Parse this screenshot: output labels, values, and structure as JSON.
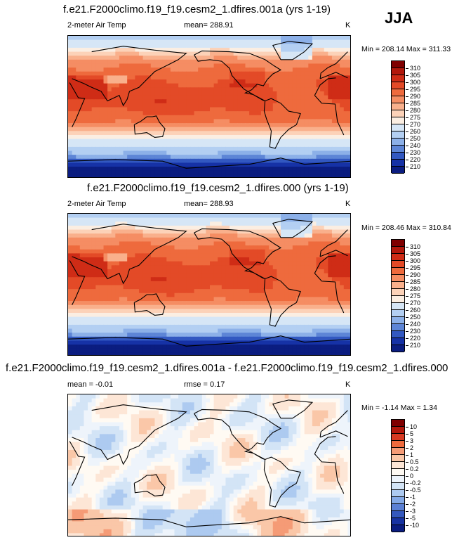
{
  "season": "JJA",
  "panels": [
    {
      "title": "f.e21.F2000climo.f19_f19.cesm2_1.dfires.001a (yrs 1-19)",
      "variable": "2-meter Air Temp",
      "mean_text": "mean= 288.91",
      "units": "K",
      "minmax_text": "Min = 208.14 Max = 311.33",
      "colorbar": {
        "labels": [
          "310",
          "305",
          "300",
          "295",
          "290",
          "285",
          "280",
          "275",
          "270",
          "260",
          "250",
          "240",
          "230",
          "220",
          "210"
        ],
        "colors": [
          "#7f0000",
          "#b2180c",
          "#cf2c16",
          "#e34a27",
          "#ee6a3d",
          "#f58d63",
          "#f9b08c",
          "#fcd2b8",
          "#fbeee2",
          "#d6e6f6",
          "#b3cff2",
          "#8cb0e8",
          "#5d85d6",
          "#3258c1",
          "#1632a6",
          "#0b1d80"
        ]
      },
      "field": "abs"
    },
    {
      "title": "f.e21.F2000climo.f19_f19.cesm2_1.dfires.000 (yrs 1-19)",
      "variable": "2-meter Air Temp",
      "mean_text": "mean= 288.93",
      "units": "K",
      "minmax_text": "Min = 208.46 Max = 310.84",
      "colorbar": {
        "labels": [
          "310",
          "305",
          "300",
          "295",
          "290",
          "285",
          "280",
          "275",
          "270",
          "260",
          "250",
          "240",
          "230",
          "220",
          "210"
        ],
        "colors": [
          "#7f0000",
          "#b2180c",
          "#cf2c16",
          "#e34a27",
          "#ee6a3d",
          "#f58d63",
          "#f9b08c",
          "#fcd2b8",
          "#fbeee2",
          "#d6e6f6",
          "#b3cff2",
          "#8cb0e8",
          "#5d85d6",
          "#3258c1",
          "#1632a6",
          "#0b1d80"
        ]
      },
      "field": "abs"
    },
    {
      "title": "f.e21.F2000climo.f19_f19.cesm2_1.dfires.001a - f.e21.F2000climo.f19_f19.cesm2_1.dfires.000",
      "variable": "mean =  -0.01",
      "mean_text": "rmse =  0.17",
      "units": "K",
      "minmax_text": "Min =  -1.14 Max =   1.34",
      "colorbar": {
        "labels": [
          "10",
          "5",
          "3",
          "2",
          "1",
          "0.5",
          "0.2",
          "0",
          "-0.2",
          "-0.5",
          "-1",
          "-2",
          "-3",
          "-5",
          "-10"
        ],
        "colors": [
          "#7f0000",
          "#b2180c",
          "#d73a22",
          "#ee6a3d",
          "#f59b76",
          "#fac7a8",
          "#fde6d6",
          "#fffaf3",
          "#eef4fb",
          "#d3e4f6",
          "#adcaf0",
          "#84a9e6",
          "#5b80d4",
          "#3458bd",
          "#1833a2",
          "#0b1d80"
        ]
      },
      "field": "diff"
    }
  ]
}
